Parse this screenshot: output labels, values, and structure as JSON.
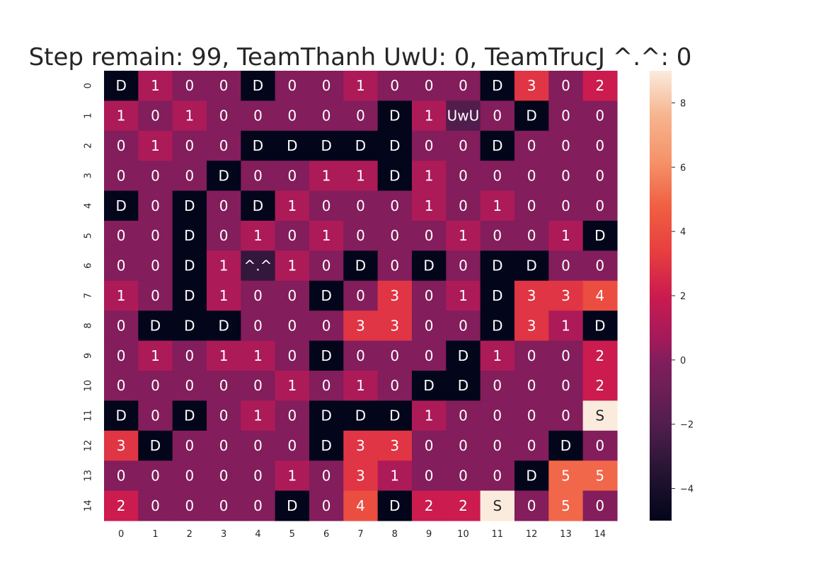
{
  "chart_data": {
    "type": "heatmap",
    "title": "Step remain: 99, TeamThanh UwU: 0, TeamTrucJ ^.^: 0",
    "xlabel": "",
    "ylabel": "",
    "x_ticks": [
      "0",
      "1",
      "2",
      "3",
      "4",
      "5",
      "6",
      "7",
      "8",
      "9",
      "10",
      "11",
      "12",
      "13",
      "14"
    ],
    "y_ticks": [
      "0",
      "1",
      "2",
      "3",
      "4",
      "5",
      "6",
      "7",
      "8",
      "9",
      "10",
      "11",
      "12",
      "13",
      "14"
    ],
    "colorbar": {
      "min": -5,
      "max": 9,
      "ticks": [
        -4,
        -2,
        0,
        2,
        4,
        6,
        8
      ],
      "colormap": "rocket"
    },
    "values": [
      [
        -5,
        1,
        0,
        0,
        -5,
        0,
        0,
        1,
        0,
        0,
        0,
        -5,
        3,
        0,
        2
      ],
      [
        1,
        0,
        1,
        0,
        0,
        0,
        0,
        0,
        -5,
        1,
        -2,
        0,
        -5,
        0,
        0
      ],
      [
        0,
        1,
        0,
        0,
        -5,
        -5,
        -5,
        -5,
        -5,
        0,
        0,
        -5,
        0,
        0,
        0
      ],
      [
        0,
        0,
        0,
        -5,
        0,
        0,
        1,
        1,
        -5,
        1,
        0,
        0,
        0,
        0,
        0
      ],
      [
        -5,
        0,
        -5,
        0,
        -5,
        1,
        0,
        0,
        0,
        1,
        0,
        1,
        0,
        0,
        0
      ],
      [
        0,
        0,
        -5,
        0,
        1,
        0,
        1,
        0,
        0,
        0,
        1,
        0,
        0,
        1,
        -5
      ],
      [
        0,
        0,
        -5,
        1,
        -3,
        1,
        0,
        -5,
        0,
        -5,
        0,
        -5,
        -5,
        0,
        0
      ],
      [
        1,
        0,
        -5,
        1,
        0,
        0,
        -5,
        0,
        3,
        0,
        1,
        -5,
        3,
        3,
        4
      ],
      [
        0,
        -5,
        -5,
        -5,
        0,
        0,
        0,
        3,
        3,
        0,
        0,
        -5,
        3,
        1,
        -5
      ],
      [
        0,
        1,
        0,
        1,
        1,
        0,
        -5,
        0,
        0,
        0,
        -5,
        1,
        0,
        0,
        2
      ],
      [
        0,
        0,
        0,
        0,
        0,
        1,
        0,
        1,
        0,
        -5,
        -5,
        0,
        0,
        0,
        2
      ],
      [
        -5,
        0,
        -5,
        0,
        1,
        0,
        -5,
        -5,
        -5,
        1,
        0,
        0,
        0,
        0,
        9
      ],
      [
        3,
        -5,
        0,
        0,
        0,
        0,
        -5,
        3,
        3,
        0,
        0,
        0,
        0,
        -5,
        0
      ],
      [
        0,
        0,
        0,
        0,
        0,
        1,
        0,
        3,
        1,
        0,
        0,
        0,
        -5,
        5,
        5
      ],
      [
        2,
        0,
        0,
        0,
        0,
        -5,
        0,
        4,
        -5,
        2,
        2,
        9,
        0,
        5,
        0
      ]
    ],
    "annotations": [
      [
        "D",
        "1",
        "0",
        "0",
        "D",
        "0",
        "0",
        "1",
        "0",
        "0",
        "0",
        "D",
        "3",
        "0",
        "2"
      ],
      [
        "1",
        "0",
        "1",
        "0",
        "0",
        "0",
        "0",
        "0",
        "D",
        "1",
        "UwU",
        "0",
        "D",
        "0",
        "0"
      ],
      [
        "0",
        "1",
        "0",
        "0",
        "D",
        "D",
        "D",
        "D",
        "D",
        "0",
        "0",
        "D",
        "0",
        "0",
        "0"
      ],
      [
        "0",
        "0",
        "0",
        "D",
        "0",
        "0",
        "1",
        "1",
        "D",
        "1",
        "0",
        "0",
        "0",
        "0",
        "0"
      ],
      [
        "D",
        "0",
        "D",
        "0",
        "D",
        "1",
        "0",
        "0",
        "0",
        "1",
        "0",
        "1",
        "0",
        "0",
        "0"
      ],
      [
        "0",
        "0",
        "D",
        "0",
        "1",
        "0",
        "1",
        "0",
        "0",
        "0",
        "1",
        "0",
        "0",
        "1",
        "D"
      ],
      [
        "0",
        "0",
        "D",
        "1",
        "^.^",
        "1",
        "0",
        "D",
        "0",
        "D",
        "0",
        "D",
        "D",
        "0",
        "0"
      ],
      [
        "1",
        "0",
        "D",
        "1",
        "0",
        "0",
        "D",
        "0",
        "3",
        "0",
        "1",
        "D",
        "3",
        "3",
        "4"
      ],
      [
        "0",
        "D",
        "D",
        "D",
        "0",
        "0",
        "0",
        "3",
        "3",
        "0",
        "0",
        "D",
        "3",
        "1",
        "D"
      ],
      [
        "0",
        "1",
        "0",
        "1",
        "1",
        "0",
        "D",
        "0",
        "0",
        "0",
        "D",
        "1",
        "0",
        "0",
        "2"
      ],
      [
        "0",
        "0",
        "0",
        "0",
        "0",
        "1",
        "0",
        "1",
        "0",
        "D",
        "D",
        "0",
        "0",
        "0",
        "2"
      ],
      [
        "D",
        "0",
        "D",
        "0",
        "1",
        "0",
        "D",
        "D",
        "D",
        "1",
        "0",
        "0",
        "0",
        "0",
        "S"
      ],
      [
        "3",
        "D",
        "0",
        "0",
        "0",
        "0",
        "D",
        "3",
        "3",
        "0",
        "0",
        "0",
        "0",
        "D",
        "0"
      ],
      [
        "0",
        "0",
        "0",
        "0",
        "0",
        "1",
        "0",
        "3",
        "1",
        "0",
        "0",
        "0",
        "D",
        "5",
        "5"
      ],
      [
        "2",
        "0",
        "0",
        "0",
        "0",
        "D",
        "0",
        "4",
        "D",
        "2",
        "2",
        "S",
        "0",
        "5",
        "0"
      ]
    ]
  }
}
